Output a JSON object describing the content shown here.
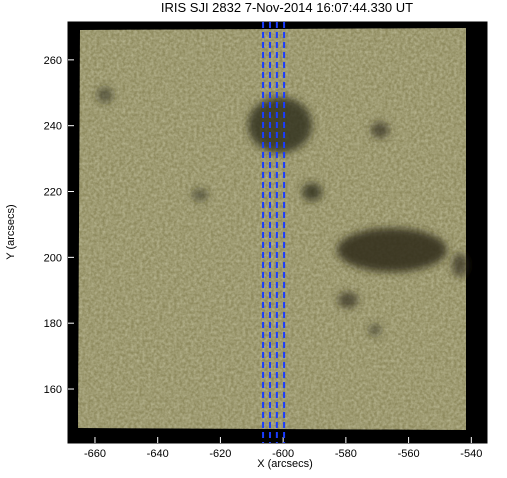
{
  "chart_data": {
    "type": "image",
    "title": "IRIS SJI 2832  7-Nov-2014 16:07:44.330 UT",
    "x_label": "X (arcsecs)",
    "y_label": "Y (arcsecs)",
    "xlim": [
      -668.6,
      -535
    ],
    "ylim": [
      143.6,
      271.5
    ],
    "xticks": [
      -660,
      -640,
      -620,
      -600,
      -580,
      -560,
      -540
    ],
    "yticks": [
      160,
      180,
      200,
      220,
      240,
      260
    ],
    "slit_x": [
      -606.4,
      -604.2,
      -602.0,
      -599.7
    ],
    "slit_color": "#1a3cff"
  }
}
